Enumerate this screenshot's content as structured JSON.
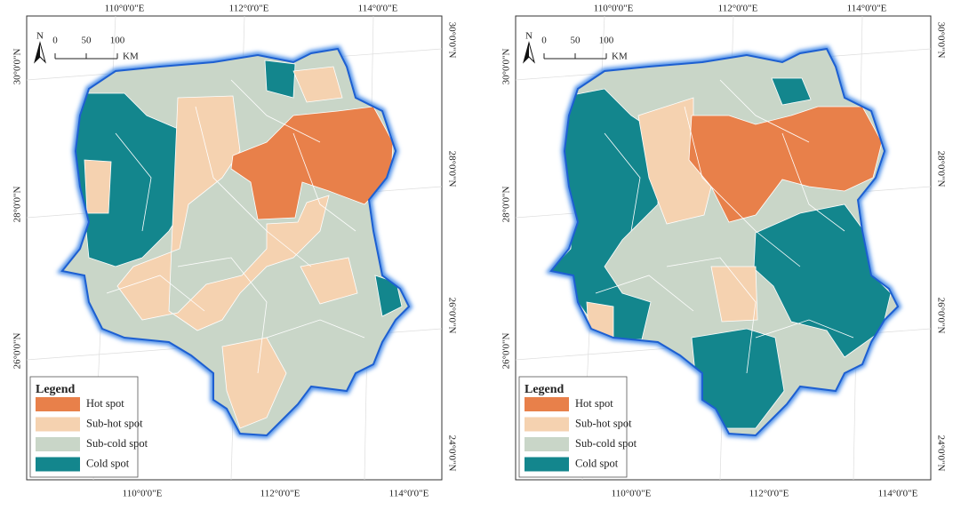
{
  "maps": [
    {
      "top_labels": [
        "110°0'0\"E",
        "112°0'0\"E",
        "114°0'0\"E"
      ],
      "bottom_labels": [
        "110°0'0\"E",
        "112°0'0\"E",
        "114°0'0\"E"
      ],
      "left_labels": [
        "30°0'0\"N",
        "28°0'0\"N",
        "26°0'0\"N"
      ],
      "right_labels": [
        "30°0'0\"N",
        "28°0'0\"N",
        "26°0'0\"N",
        "24°0'0\"N"
      ],
      "north": "N",
      "scale": {
        "labels": [
          0,
          50,
          100
        ],
        "unit": "KM"
      },
      "legend": {
        "title": "Legend",
        "items": [
          {
            "label": "Hot spot",
            "color": "#e8804a"
          },
          {
            "label": "Sub-hot spot",
            "color": "#f5d2b0"
          },
          {
            "label": "Sub-cold spot",
            "color": "#c9d6c8"
          },
          {
            "label": "Cold spot",
            "color": "#13868d"
          }
        ]
      }
    },
    {
      "top_labels": [
        "110°0'0\"E",
        "112°0'0\"E",
        "114°0'0\"E"
      ],
      "bottom_labels": [
        "110°0'0\"E",
        "112°0'0\"E",
        "114°0'0\"E"
      ],
      "left_labels": [
        "30°0'0\"N",
        "28°0'0\"N",
        "26°0'0\"N"
      ],
      "right_labels": [
        "30°0'0\"N",
        "28°0'0\"N",
        "26°0'0\"N",
        "24°0'0\"N"
      ],
      "north": "N",
      "scale": {
        "labels": [
          0,
          50,
          100
        ],
        "unit": "KM"
      },
      "legend": {
        "title": "Legend",
        "items": [
          {
            "label": "Hot spot",
            "color": "#e8804a"
          },
          {
            "label": "Sub-hot spot",
            "color": "#f5d2b0"
          },
          {
            "label": "Sub-cold spot",
            "color": "#c9d6c8"
          },
          {
            "label": "Cold spot",
            "color": "#13868d"
          }
        ]
      }
    }
  ]
}
